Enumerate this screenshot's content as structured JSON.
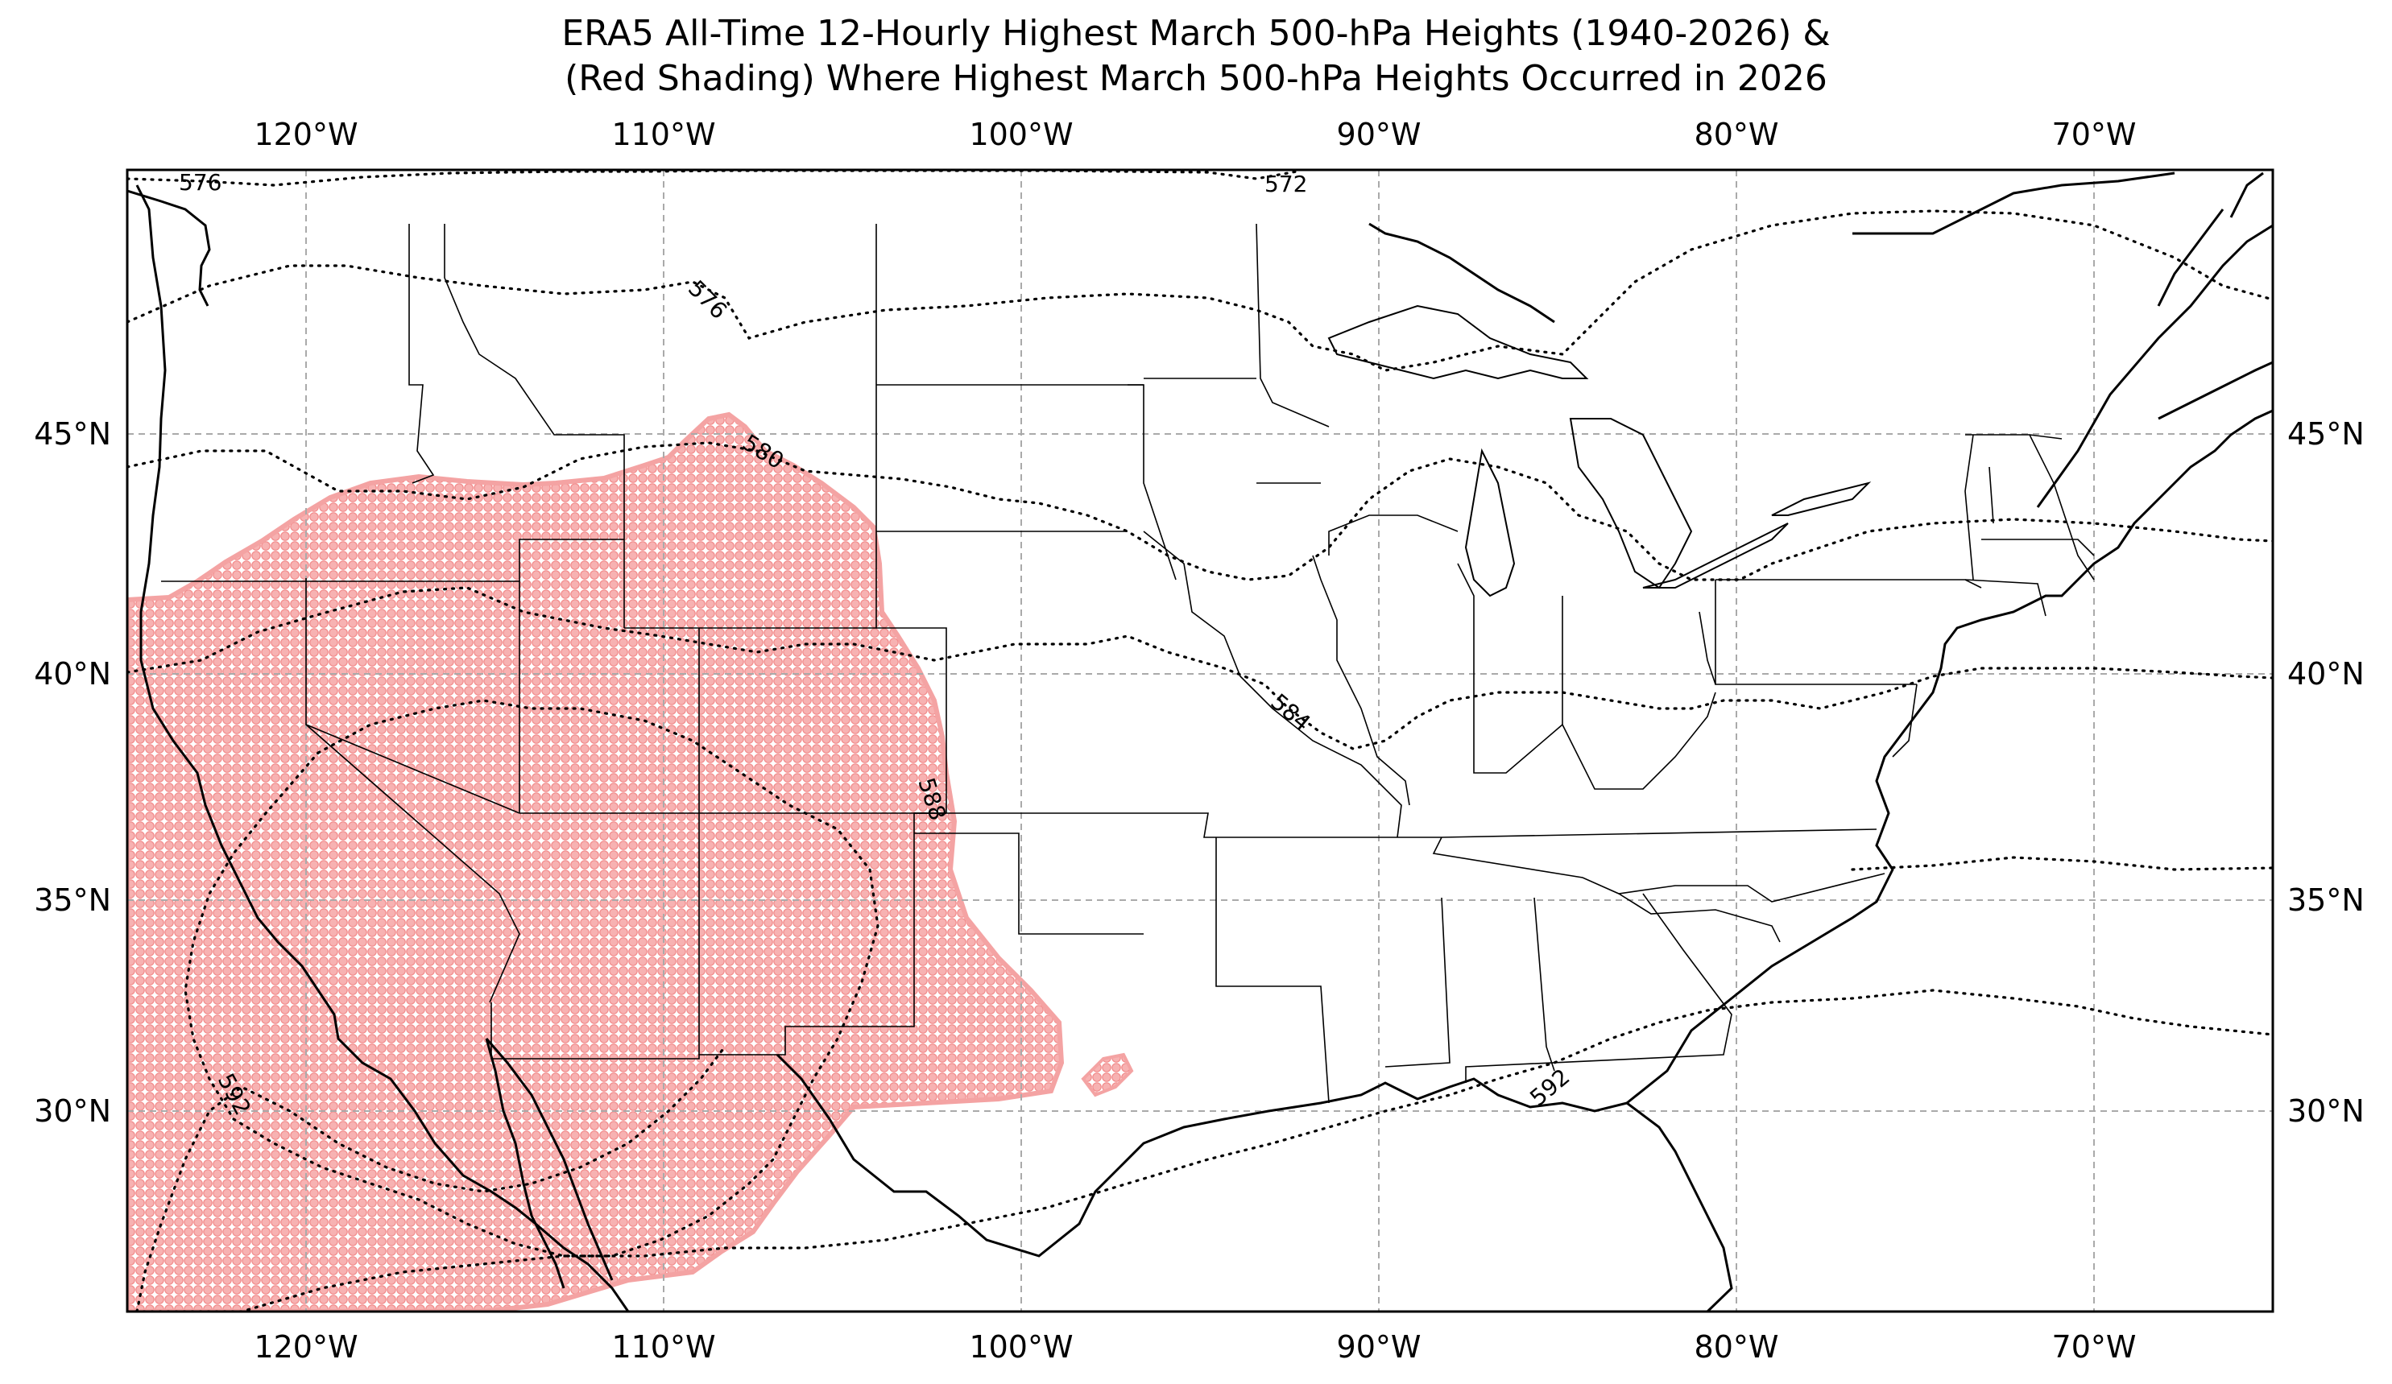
{
  "title": {
    "line1": "ERA5 All-Time 12-Hourly Highest March 500-hPa Heights (1940-2026) &",
    "line2": "(Red Shading) Where Highest March 500-hPa Heights Occurred in 2026"
  },
  "map": {
    "projection": "PlateCarree",
    "extent": {
      "lon": [
        -125,
        -65
      ],
      "lat": [
        25,
        50
      ]
    },
    "gridlines": "dashed",
    "lon_ticks": [
      {
        "value": -120,
        "label": "120°W"
      },
      {
        "value": -110,
        "label": "110°W"
      },
      {
        "value": -100,
        "label": "100°W"
      },
      {
        "value": -90,
        "label": "90°W"
      },
      {
        "value": -80,
        "label": "80°W"
      },
      {
        "value": -70,
        "label": "70°W"
      }
    ],
    "lat_ticks": [
      {
        "value": 45,
        "label": "45°N"
      },
      {
        "value": 40,
        "label": "40°N"
      },
      {
        "value": 35,
        "label": "35°N"
      },
      {
        "value": 30,
        "label": "30°N"
      }
    ],
    "shading_color": "#f28a8a",
    "contours": [
      {
        "level": 572,
        "label": "572"
      },
      {
        "level": 576,
        "label": "576"
      },
      {
        "level": 580,
        "label": "580"
      },
      {
        "level": 584,
        "label": "584"
      },
      {
        "level": 588,
        "label": "588"
      },
      {
        "level": 592,
        "label": "592"
      }
    ]
  }
}
